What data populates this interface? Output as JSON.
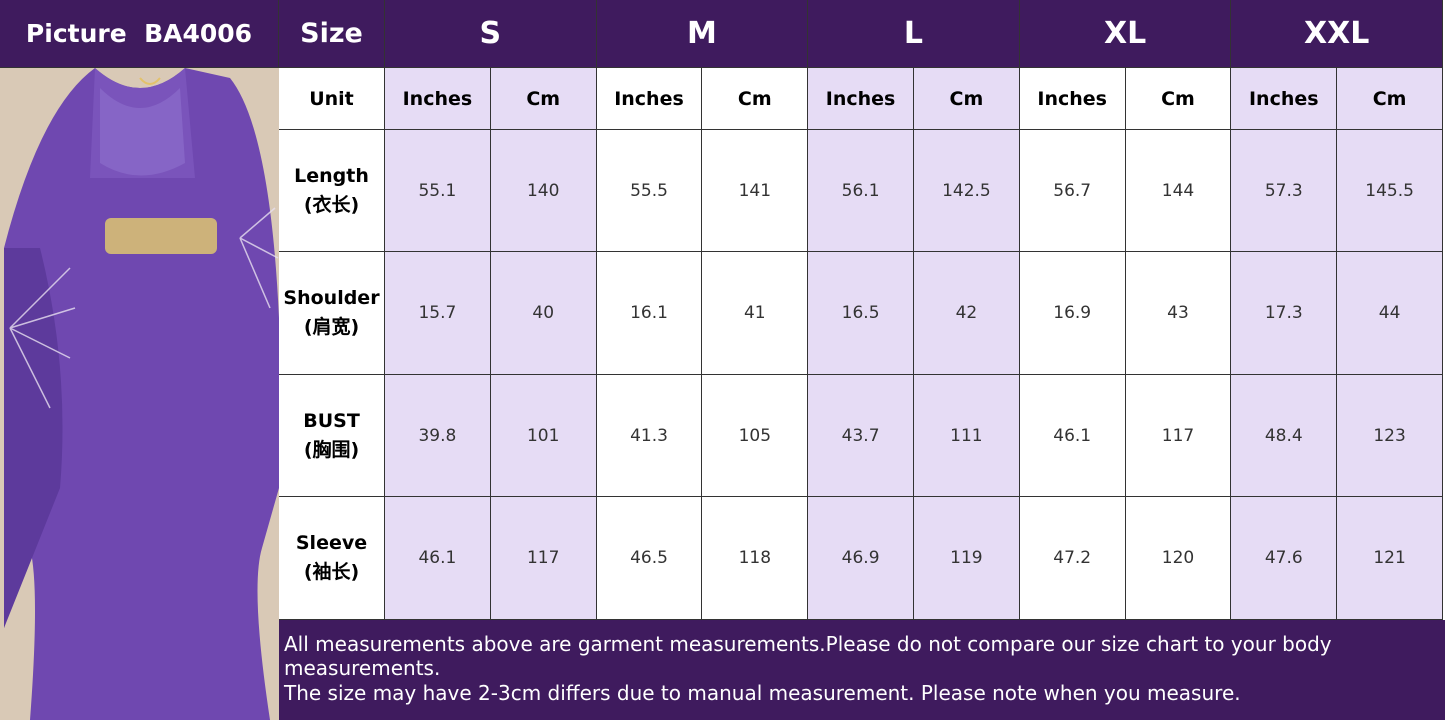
{
  "header": {
    "picture_label": "Picture  BA4006",
    "size_label": "Size",
    "sizes": [
      "S",
      "M",
      "L",
      "XL",
      "XXL"
    ]
  },
  "unit_row": {
    "label": "Unit",
    "units": [
      "Inches",
      "Cm",
      "Inches",
      "Cm",
      "Inches",
      "Cm",
      "Inches",
      "Cm",
      "Inches",
      "Cm"
    ]
  },
  "rows": [
    {
      "label": "Length",
      "sublabel": "(衣长)",
      "values": [
        55.1,
        140,
        55.5,
        141,
        56.1,
        142.5,
        56.7,
        144,
        57.3,
        145.5
      ]
    },
    {
      "label": "Shoulder",
      "sublabel": "(肩宽)",
      "values": [
        15.7,
        40,
        16.1,
        41,
        16.5,
        42,
        16.9,
        43,
        17.3,
        44
      ]
    },
    {
      "label": "BUST",
      "sublabel": "(胸围)",
      "values": [
        39.8,
        101,
        41.3,
        105,
        43.7,
        111,
        46.1,
        117,
        48.4,
        123
      ]
    },
    {
      "label": "Sleeve",
      "sublabel": "(袖长)",
      "values": [
        46.1,
        117,
        46.5,
        118,
        46.9,
        119,
        47.2,
        120,
        47.6,
        121
      ]
    }
  ],
  "notes": [
    "All measurements above are garment measurements.Please do not compare our size chart to your body measurements.",
    "The size may have 2-3cm differs due to manual measurement. Please note when you measure."
  ]
}
